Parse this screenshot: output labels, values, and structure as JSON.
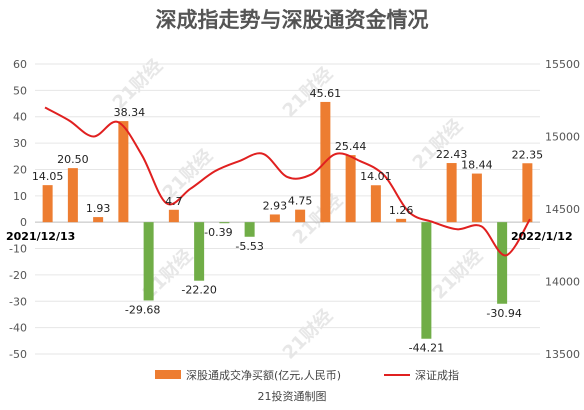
{
  "chart_data": {
    "type": "bar+line",
    "title": "深成指走势与深股通资金情况",
    "categories": [
      "2021/12/13",
      "",
      "",
      "",
      "",
      "",
      "",
      "",
      "",
      "",
      "",
      "",
      "",
      "",
      "",
      "",
      "",
      "",
      "",
      "",
      "2022/1/12"
    ],
    "start_label": "2021/12/13",
    "end_label": "2022/1/12",
    "bar_series": {
      "name": "深股通成交净买额(亿元,人民币)",
      "values": [
        14.05,
        20.5,
        1.93,
        38.34,
        -29.68,
        4.7,
        -22.2,
        -0.39,
        -5.53,
        2.93,
        4.75,
        45.61,
        25.44,
        14.01,
        1.26,
        -44.21,
        22.43,
        18.44,
        -30.94,
        22.35
      ],
      "labels": [
        "14.05",
        "20.50",
        "1.93",
        "38.34",
        "-29.68",
        "4.7",
        "-22.20",
        "-0.39",
        "-5.53",
        "2.93",
        "4.75",
        "45.61",
        "25.44",
        "14.01",
        "1.26",
        "-44.21",
        "22.43",
        "18.44",
        "-30.94",
        "22.35"
      ],
      "positive_color": "#ED7D31",
      "negative_color": "#70AD47"
    },
    "line_series": {
      "name": "深证成指",
      "color": "#E02020",
      "values": [
        15200,
        15110,
        15000,
        15100,
        14870,
        14540,
        14640,
        14760,
        14830,
        14880,
        14720,
        14740,
        14880,
        14830,
        14730,
        14480,
        14410,
        14360,
        14380,
        14180,
        14430
      ]
    },
    "y_left": {
      "min": -50,
      "max": 60,
      "step": 10,
      "ticks": [
        "-50",
        "-40",
        "-30",
        "-20",
        "-10",
        "0",
        "10",
        "20",
        "30",
        "40",
        "50",
        "60"
      ]
    },
    "y_right": {
      "min": 13500,
      "max": 15500,
      "step": 500,
      "ticks": [
        "13500",
        "14000",
        "14500",
        "15000",
        "15500"
      ]
    },
    "watermark": "21财经",
    "credit": "21投资通制图"
  }
}
